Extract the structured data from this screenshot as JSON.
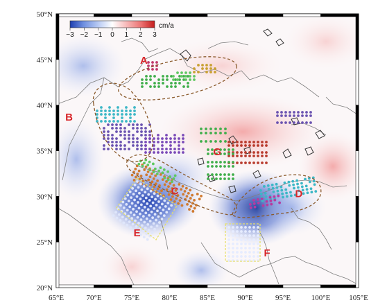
{
  "map": {
    "lon_range": [
      65,
      105
    ],
    "lat_range": [
      20,
      50
    ],
    "lon_ticks": [
      {
        "value": 65,
        "label": "65°E"
      },
      {
        "value": 70,
        "label": "70°E"
      },
      {
        "value": 75,
        "label": "75°E"
      },
      {
        "value": 80,
        "label": "80°E"
      },
      {
        "value": 85,
        "label": "85°E"
      },
      {
        "value": 90,
        "label": "90°E"
      },
      {
        "value": 95,
        "label": "95°E"
      },
      {
        "value": 100,
        "label": "100°E"
      },
      {
        "value": 105,
        "label": "105°E"
      }
    ],
    "lat_ticks": [
      {
        "value": 20,
        "label": "20°N"
      },
      {
        "value": 25,
        "label": "25°N"
      },
      {
        "value": 30,
        "label": "30°N"
      },
      {
        "value": 35,
        "label": "35°N"
      },
      {
        "value": 40,
        "label": "40°N"
      },
      {
        "value": 45,
        "label": "45°N"
      },
      {
        "value": 50,
        "label": "50°N"
      }
    ]
  },
  "colorbar": {
    "unit": "cm/a",
    "range": [
      -3,
      3
    ],
    "ticks": [
      "−3",
      "−2",
      "−1",
      "0",
      "1",
      "2",
      "3"
    ],
    "colors": [
      "#1f3fb0",
      "#6f8fe0",
      "#c4d3f6",
      "#ffffff",
      "#f8c4c4",
      "#ec7272",
      "#c41c1c"
    ]
  },
  "regions": [
    {
      "id": "A",
      "label": "A",
      "label_pos": [
        76.6,
        44.9
      ]
    },
    {
      "id": "B",
      "label": "B",
      "label_pos": [
        66.7,
        38.7
      ]
    },
    {
      "id": "C",
      "label": "C",
      "label_pos": [
        80.7,
        30.6
      ]
    },
    {
      "id": "D",
      "label": "D",
      "label_pos": [
        97.1,
        30.3
      ]
    },
    {
      "id": "E",
      "label": "E",
      "label_pos": [
        75.7,
        26.0
      ]
    },
    {
      "id": "F",
      "label": "F",
      "label_pos": [
        92.9,
        23.8
      ]
    },
    {
      "id": "G",
      "label": "G",
      "label_pos": [
        86.3,
        34.9
      ]
    }
  ],
  "colors": {
    "outline": "#8a5a2c",
    "grid_box": "#e8e06a",
    "label": "#d8262a",
    "frame": "#000000"
  }
}
